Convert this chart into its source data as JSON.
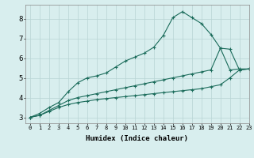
{
  "background_color": "#d8eeee",
  "grid_color": "#b8d4d4",
  "line_color": "#1a6b5a",
  "xlabel": "Humidex (Indice chaleur)",
  "ylim": [
    2.7,
    8.7
  ],
  "xlim": [
    -0.5,
    23
  ],
  "yticks": [
    3,
    4,
    5,
    6,
    7,
    8
  ],
  "xticks": [
    0,
    1,
    2,
    3,
    4,
    5,
    6,
    7,
    8,
    9,
    10,
    11,
    12,
    13,
    14,
    15,
    16,
    17,
    18,
    19,
    20,
    21,
    22,
    23
  ],
  "series": [
    [
      3.0,
      3.2,
      3.5,
      3.75,
      4.3,
      4.75,
      5.0,
      5.1,
      5.25,
      5.55,
      5.85,
      6.05,
      6.25,
      6.55,
      7.15,
      8.05,
      8.35,
      8.05,
      7.75,
      7.2,
      6.5,
      5.4,
      5.45,
      5.45
    ],
    [
      3.0,
      3.1,
      3.35,
      3.6,
      3.85,
      4.0,
      4.1,
      4.2,
      4.3,
      4.4,
      4.5,
      4.6,
      4.7,
      4.8,
      4.9,
      5.0,
      5.1,
      5.2,
      5.3,
      5.4,
      6.5,
      6.45,
      5.4,
      5.45
    ],
    [
      3.0,
      3.1,
      3.3,
      3.5,
      3.65,
      3.75,
      3.82,
      3.9,
      3.95,
      4.0,
      4.05,
      4.1,
      4.15,
      4.2,
      4.25,
      4.3,
      4.35,
      4.4,
      4.45,
      4.55,
      4.65,
      5.0,
      5.4,
      5.45
    ]
  ]
}
